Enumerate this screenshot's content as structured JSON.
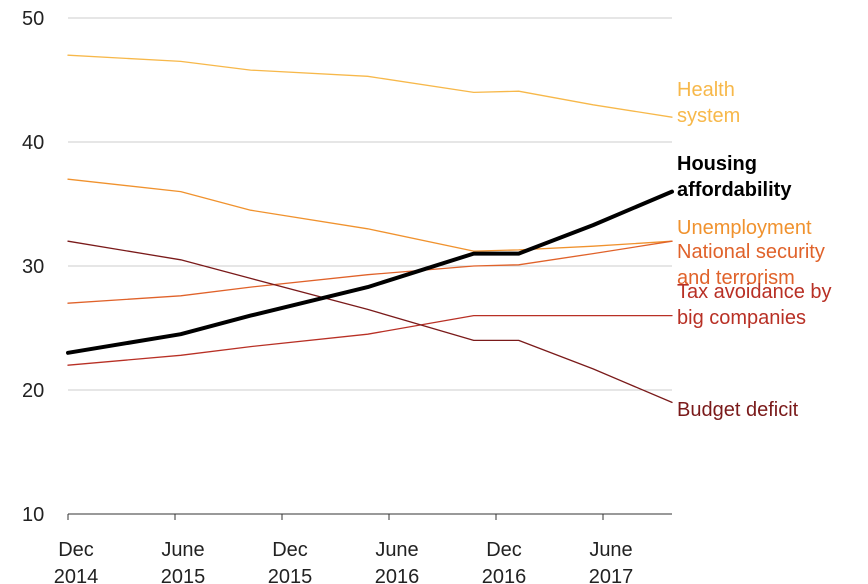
{
  "chart_data": {
    "type": "line",
    "title": "",
    "xlabel": "",
    "ylabel": "",
    "ylim": [
      10,
      50
    ],
    "yticks": [
      10,
      20,
      30,
      40,
      50
    ],
    "grid": "horizontal",
    "x_ticks": [
      {
        "line1": "Dec",
        "line2": "2014"
      },
      {
        "line1": "June",
        "line2": "2015"
      },
      {
        "line1": "Dec",
        "line2": "2015"
      },
      {
        "line1": "June",
        "line2": "2016"
      },
      {
        "line1": "Dec",
        "line2": "2016"
      },
      {
        "line1": "June",
        "line2": "2017"
      }
    ],
    "x": [
      2014.92,
      2015.42,
      2015.73,
      2016.25,
      2016.72,
      2016.92,
      2017.25,
      2017.6
    ],
    "series": [
      {
        "name": "Health system",
        "label_lines": [
          "Health",
          "system"
        ],
        "color": "#f7b84a",
        "width": 1.3,
        "bold": false,
        "values": [
          47.0,
          46.5,
          45.8,
          45.3,
          44.0,
          44.1,
          43.0,
          42.0
        ]
      },
      {
        "name": "Housing affordability",
        "label_lines": [
          "Housing",
          "affordability"
        ],
        "color": "#000000",
        "width": 4,
        "bold": true,
        "values": [
          23.0,
          24.5,
          26.0,
          28.3,
          31.0,
          31.0,
          33.3,
          36.0
        ]
      },
      {
        "name": "Unemployment",
        "label_lines": [
          "Unemployment"
        ],
        "color": "#f0922e",
        "width": 1.3,
        "bold": false,
        "values": [
          37.0,
          36.0,
          34.5,
          33.0,
          31.2,
          31.3,
          31.6,
          32.0
        ]
      },
      {
        "name": "National security and terrorism",
        "label_lines": [
          "National security",
          "and terrorism"
        ],
        "color": "#e0622a",
        "width": 1.3,
        "bold": false,
        "values": [
          27.0,
          27.6,
          28.3,
          29.3,
          30.0,
          30.1,
          31.0,
          32.0
        ]
      },
      {
        "name": "Tax avoidance by big companies",
        "label_lines": [
          "Tax avoidance by",
          "big companies"
        ],
        "color": "#b83025",
        "width": 1.3,
        "bold": false,
        "values": [
          22.0,
          22.8,
          23.5,
          24.5,
          26.0,
          26.0,
          26.0,
          26.0
        ]
      },
      {
        "name": "Budget deficit",
        "label_lines": [
          "Budget deficit"
        ],
        "color": "#7a1a1a",
        "width": 1.3,
        "bold": false,
        "values": [
          32.0,
          30.5,
          29.0,
          26.5,
          24.0,
          24.0,
          21.7,
          19.0
        ]
      }
    ]
  }
}
